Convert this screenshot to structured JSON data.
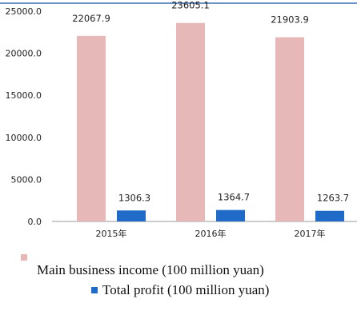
{
  "chart_data": {
    "type": "bar",
    "categories": [
      "2015年",
      "2016年",
      "2017年"
    ],
    "series": [
      {
        "name": "Main business income (100 million yuan)",
        "values": [
          22067.9,
          23605.1,
          21903.9
        ],
        "color": "#e6b8b8"
      },
      {
        "name": "Total profit (100 million yuan)",
        "values": [
          1306.3,
          1364.7,
          1263.7
        ],
        "color": "#1f6bc7"
      }
    ],
    "value_labels": [
      [
        "22067.9",
        "23605.1",
        "21903.9"
      ],
      [
        "1306.3",
        "1364.7",
        "1263.7"
      ]
    ],
    "yticks": [
      "25000.0",
      "20000.0",
      "15000.0",
      "10000.0",
      "5000.0",
      "0.0"
    ],
    "ylim": [
      0,
      25000
    ],
    "title": "",
    "xlabel": "",
    "ylabel": "",
    "grid": false,
    "legend_position": "bottom"
  }
}
